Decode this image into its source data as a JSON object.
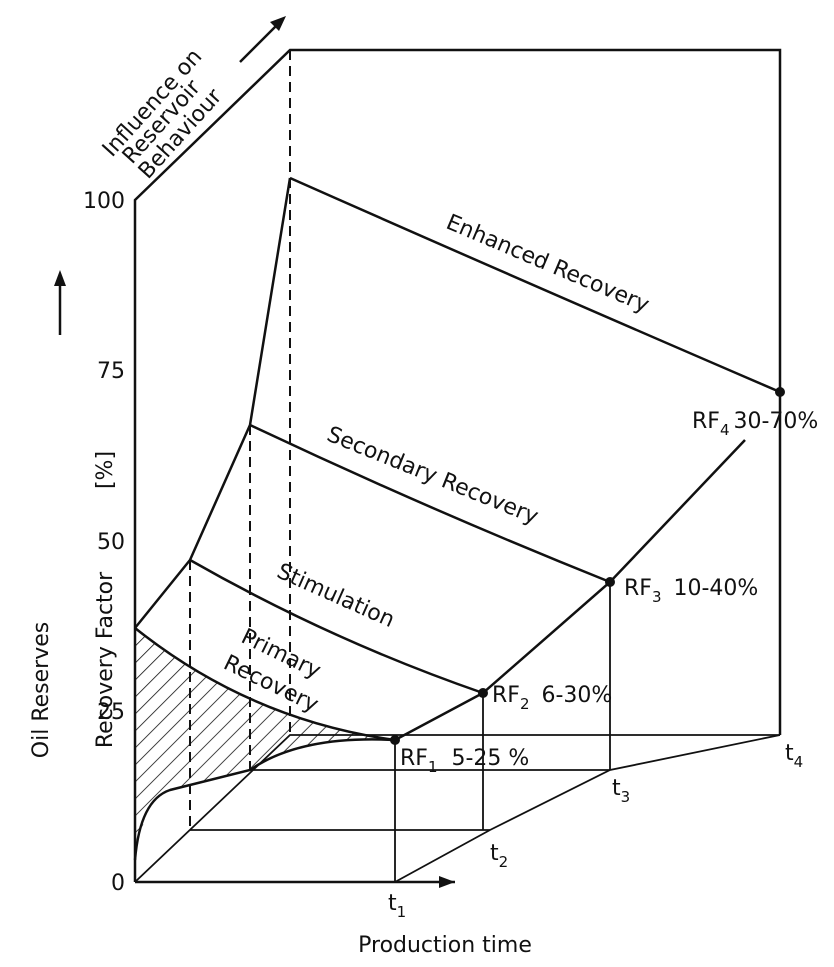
{
  "header": {
    "influence": [
      "Influence on",
      "Reservoir",
      "Behaviour"
    ]
  },
  "axis": {
    "y_label_outer": "Oil Reserves",
    "y_label_inner": "Recovery Factor",
    "unit": "[%]",
    "ticks": [
      "100",
      "75",
      "50",
      "25",
      "0"
    ],
    "x_label": "Production time"
  },
  "stages": [
    "Enhanced Recovery",
    "Secondary Recovery",
    "Stimulation",
    "Primary",
    "Recovery"
  ],
  "recovery_factors": [
    {
      "label": "RF",
      "sub": "1",
      "range": "5-25 %"
    },
    {
      "label": "RF",
      "sub": "2",
      "range": "6-30%"
    },
    {
      "label": "RF",
      "sub": "3",
      "range": "10-40%"
    },
    {
      "label": "RF",
      "sub": "4",
      "range": "30-70%"
    }
  ],
  "times": [
    {
      "label": "t",
      "sub": "1"
    },
    {
      "label": "t",
      "sub": "2"
    },
    {
      "label": "t",
      "sub": "3"
    },
    {
      "label": "t",
      "sub": "4"
    }
  ]
}
